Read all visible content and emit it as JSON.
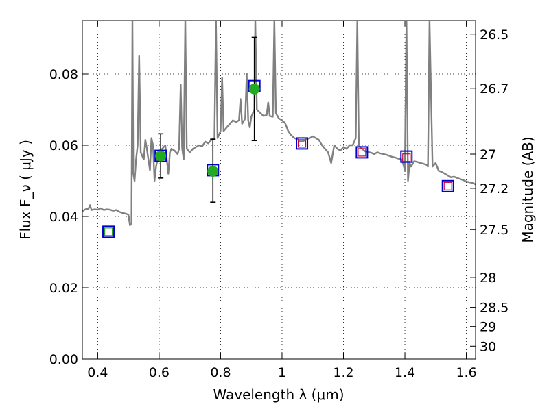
{
  "chart_data": {
    "type": "scatter",
    "xlabel": "Wavelength  λ (μm)",
    "ylabel": "Flux  F_ν  ( μJy )",
    "ylabel_right": "Magnitude (AB)",
    "xlim": [
      0.35,
      1.63
    ],
    "ylim": [
      0.0,
      0.095
    ],
    "grid": true,
    "x_ticks": [
      {
        "value": 0.4,
        "label": "0.4"
      },
      {
        "value": 0.6,
        "label": "0.6"
      },
      {
        "value": 0.8,
        "label": "0.8"
      },
      {
        "value": 1.0,
        "label": "1"
      },
      {
        "value": 1.2,
        "label": "1.2"
      },
      {
        "value": 1.4,
        "label": "1.4"
      },
      {
        "value": 1.6,
        "label": "1.6"
      }
    ],
    "y_ticks": [
      {
        "value": 0.0,
        "label": "0.00"
      },
      {
        "value": 0.02,
        "label": "0.02"
      },
      {
        "value": 0.04,
        "label": "0.04"
      },
      {
        "value": 0.06,
        "label": "0.06"
      },
      {
        "value": 0.08,
        "label": "0.08"
      }
    ],
    "right_ticks": [
      {
        "flux": 0.0912,
        "label": "26.5"
      },
      {
        "flux": 0.076,
        "label": "26.7"
      },
      {
        "flux": 0.0575,
        "label": "27"
      },
      {
        "flux": 0.0479,
        "label": "27.2"
      },
      {
        "flux": 0.0363,
        "label": "27.5"
      },
      {
        "flux": 0.0229,
        "label": "28"
      },
      {
        "flux": 0.0145,
        "label": "28.5"
      },
      {
        "flux": 0.0091,
        "label": "29"
      },
      {
        "flux": 0.0036,
        "label": "30"
      }
    ],
    "series": [
      {
        "marker": "open-square",
        "edge_color": "#0000cc",
        "points": [
          {
            "x": 0.435,
            "y": 0.0357
          },
          {
            "x": 0.605,
            "y": 0.057
          },
          {
            "x": 0.775,
            "y": 0.053
          },
          {
            "x": 0.91,
            "y": 0.0766
          },
          {
            "x": 1.065,
            "y": 0.0605
          },
          {
            "x": 1.26,
            "y": 0.058
          },
          {
            "x": 1.405,
            "y": 0.0568
          },
          {
            "x": 1.54,
            "y": 0.0485
          }
        ]
      },
      {
        "marker": "open-square-small",
        "edge_color": "#2ca02c",
        "points": [
          {
            "x": 0.435,
            "y": 0.0357
          }
        ]
      },
      {
        "marker": "open-square-small",
        "edge_color": "#cc0033",
        "points": [
          {
            "x": 1.065,
            "y": 0.0605
          },
          {
            "x": 1.26,
            "y": 0.058
          },
          {
            "x": 1.405,
            "y": 0.0565
          },
          {
            "x": 1.54,
            "y": 0.0485
          }
        ]
      },
      {
        "marker": "filled-circle",
        "color": "#22aa22",
        "error_bar_color": "#000000",
        "points": [
          {
            "x": 0.605,
            "y": 0.057,
            "ylow": 0.0508,
            "yhigh": 0.0632
          },
          {
            "x": 0.775,
            "y": 0.0527,
            "ylow": 0.044,
            "yhigh": 0.0617
          },
          {
            "x": 0.91,
            "y": 0.0758,
            "ylow": 0.0613,
            "yhigh": 0.0903
          }
        ]
      }
    ],
    "spectrum": {
      "color": "#808080",
      "points": [
        [
          0.35,
          0.0415
        ],
        [
          0.36,
          0.042
        ],
        [
          0.37,
          0.0422
        ],
        [
          0.375,
          0.0432
        ],
        [
          0.38,
          0.0418
        ],
        [
          0.39,
          0.042
        ],
        [
          0.4,
          0.0419
        ],
        [
          0.41,
          0.0423
        ],
        [
          0.42,
          0.0418
        ],
        [
          0.43,
          0.042
        ],
        [
          0.44,
          0.0419
        ],
        [
          0.45,
          0.0416
        ],
        [
          0.46,
          0.0418
        ],
        [
          0.47,
          0.0413
        ],
        [
          0.48,
          0.041
        ],
        [
          0.49,
          0.0408
        ],
        [
          0.5,
          0.0405
        ],
        [
          0.505,
          0.0375
        ],
        [
          0.51,
          0.038
        ],
        [
          0.513,
          0.095
        ],
        [
          0.516,
          0.052
        ],
        [
          0.52,
          0.05
        ],
        [
          0.525,
          0.056
        ],
        [
          0.53,
          0.06
        ],
        [
          0.535,
          0.085
        ],
        [
          0.54,
          0.058
        ],
        [
          0.55,
          0.056
        ],
        [
          0.555,
          0.0615
        ],
        [
          0.56,
          0.059
        ],
        [
          0.57,
          0.053
        ],
        [
          0.575,
          0.062
        ],
        [
          0.58,
          0.06
        ],
        [
          0.585,
          0.05
        ],
        [
          0.59,
          0.054
        ],
        [
          0.6,
          0.058
        ],
        [
          0.61,
          0.059
        ],
        [
          0.62,
          0.06
        ],
        [
          0.63,
          0.052
        ],
        [
          0.635,
          0.058
        ],
        [
          0.64,
          0.059
        ],
        [
          0.65,
          0.0585
        ],
        [
          0.66,
          0.0575
        ],
        [
          0.665,
          0.059
        ],
        [
          0.67,
          0.077
        ],
        [
          0.675,
          0.059
        ],
        [
          0.68,
          0.056
        ],
        [
          0.685,
          0.095
        ],
        [
          0.69,
          0.059
        ],
        [
          0.7,
          0.058
        ],
        [
          0.71,
          0.059
        ],
        [
          0.72,
          0.0595
        ],
        [
          0.73,
          0.06
        ],
        [
          0.74,
          0.0597
        ],
        [
          0.75,
          0.061
        ],
        [
          0.76,
          0.0605
        ],
        [
          0.77,
          0.0615
        ],
        [
          0.78,
          0.062
        ],
        [
          0.785,
          0.095
        ],
        [
          0.79,
          0.062
        ],
        [
          0.8,
          0.064
        ],
        [
          0.805,
          0.079
        ],
        [
          0.81,
          0.064
        ],
        [
          0.82,
          0.065
        ],
        [
          0.83,
          0.066
        ],
        [
          0.84,
          0.067
        ],
        [
          0.85,
          0.0665
        ],
        [
          0.86,
          0.067
        ],
        [
          0.865,
          0.073
        ],
        [
          0.87,
          0.066
        ],
        [
          0.88,
          0.0675
        ],
        [
          0.885,
          0.08
        ],
        [
          0.89,
          0.067
        ],
        [
          0.895,
          0.065
        ],
        [
          0.9,
          0.068
        ],
        [
          0.91,
          0.07
        ],
        [
          0.913,
          0.095
        ],
        [
          0.918,
          0.07
        ],
        [
          0.93,
          0.069
        ],
        [
          0.94,
          0.0682
        ],
        [
          0.95,
          0.0685
        ],
        [
          0.955,
          0.072
        ],
        [
          0.96,
          0.0682
        ],
        [
          0.97,
          0.068
        ],
        [
          0.975,
          0.095
        ],
        [
          0.98,
          0.069
        ],
        [
          0.99,
          0.0675
        ],
        [
          1.0,
          0.067
        ],
        [
          1.01,
          0.0662
        ],
        [
          1.02,
          0.064
        ],
        [
          1.03,
          0.0628
        ],
        [
          1.04,
          0.062
        ],
        [
          1.05,
          0.0617
        ],
        [
          1.06,
          0.061
        ],
        [
          1.07,
          0.0612
        ],
        [
          1.08,
          0.0617
        ],
        [
          1.09,
          0.062
        ],
        [
          1.1,
          0.0625
        ],
        [
          1.11,
          0.062
        ],
        [
          1.12,
          0.0615
        ],
        [
          1.13,
          0.06
        ],
        [
          1.14,
          0.059
        ],
        [
          1.15,
          0.058
        ],
        [
          1.16,
          0.055
        ],
        [
          1.17,
          0.06
        ],
        [
          1.18,
          0.059
        ],
        [
          1.19,
          0.0585
        ],
        [
          1.2,
          0.0595
        ],
        [
          1.21,
          0.059
        ],
        [
          1.22,
          0.06
        ],
        [
          1.23,
          0.06
        ],
        [
          1.24,
          0.062
        ],
        [
          1.245,
          0.095
        ],
        [
          1.25,
          0.06
        ],
        [
          1.26,
          0.059
        ],
        [
          1.27,
          0.0583
        ],
        [
          1.28,
          0.0581
        ],
        [
          1.29,
          0.0579
        ],
        [
          1.3,
          0.0575
        ],
        [
          1.31,
          0.058
        ],
        [
          1.32,
          0.0577
        ],
        [
          1.33,
          0.0575
        ],
        [
          1.34,
          0.0573
        ],
        [
          1.35,
          0.057
        ],
        [
          1.36,
          0.0567
        ],
        [
          1.37,
          0.0565
        ],
        [
          1.38,
          0.0562
        ],
        [
          1.39,
          0.056
        ],
        [
          1.4,
          0.053
        ],
        [
          1.405,
          0.095
        ],
        [
          1.41,
          0.05
        ],
        [
          1.415,
          0.055
        ],
        [
          1.42,
          0.054
        ],
        [
          1.43,
          0.0555
        ],
        [
          1.44,
          0.0553
        ],
        [
          1.45,
          0.055
        ],
        [
          1.46,
          0.0548
        ],
        [
          1.47,
          0.0545
        ],
        [
          1.475,
          0.054
        ],
        [
          1.48,
          0.095
        ],
        [
          1.49,
          0.054
        ],
        [
          1.5,
          0.055
        ],
        [
          1.51,
          0.0528
        ],
        [
          1.52,
          0.0525
        ],
        [
          1.53,
          0.052
        ],
        [
          1.54,
          0.0515
        ],
        [
          1.55,
          0.051
        ],
        [
          1.56,
          0.0512
        ],
        [
          1.57,
          0.0508
        ],
        [
          1.58,
          0.0505
        ],
        [
          1.59,
          0.0502
        ],
        [
          1.6,
          0.0498
        ],
        [
          1.61,
          0.0496
        ],
        [
          1.62,
          0.0494
        ],
        [
          1.63,
          0.049
        ]
      ]
    }
  }
}
